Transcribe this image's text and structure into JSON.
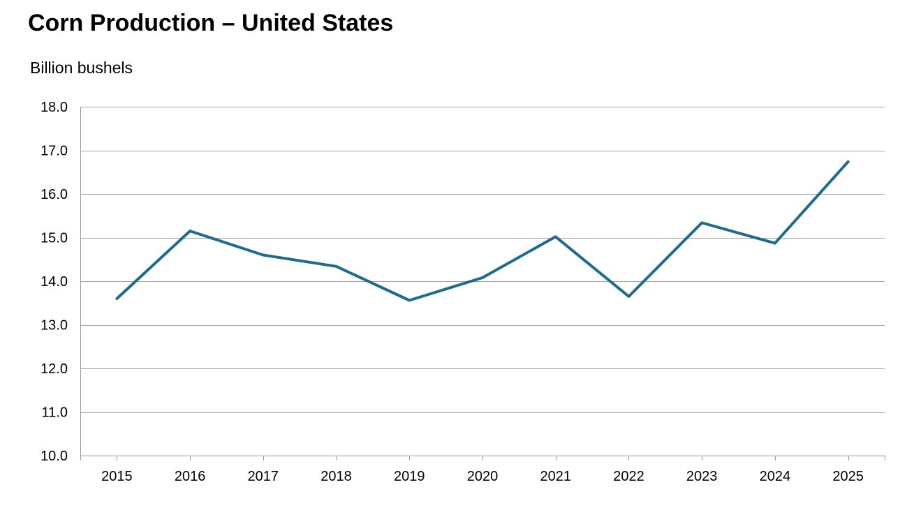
{
  "page": {
    "title": "Corn Production – United States",
    "units_label": "Billion bushels"
  },
  "chart_data": {
    "type": "line",
    "title": "Corn Production – United States",
    "ylabel": "Billion bushels",
    "xlabel": "",
    "categories": [
      "2015",
      "2016",
      "2017",
      "2018",
      "2019",
      "2020",
      "2021",
      "2022",
      "2023",
      "2024",
      "2025"
    ],
    "values": [
      13.6,
      15.15,
      14.6,
      14.34,
      13.56,
      14.08,
      15.02,
      13.65,
      15.34,
      14.87,
      16.74
    ],
    "series_name": "Corn production, billion bushels",
    "ylim": [
      10.0,
      18.0
    ],
    "ytick_step": 1.0,
    "ytick_labels": [
      "10.0",
      "11.0",
      "12.0",
      "13.0",
      "14.0",
      "15.0",
      "16.0",
      "17.0",
      "18.0"
    ],
    "grid": "horizontal",
    "legend": "none",
    "line_color": "#1f6b8e",
    "line_width": 4,
    "grid_color": "#a6a6a6",
    "axis_color": "#999999",
    "text_color": "#000000"
  }
}
